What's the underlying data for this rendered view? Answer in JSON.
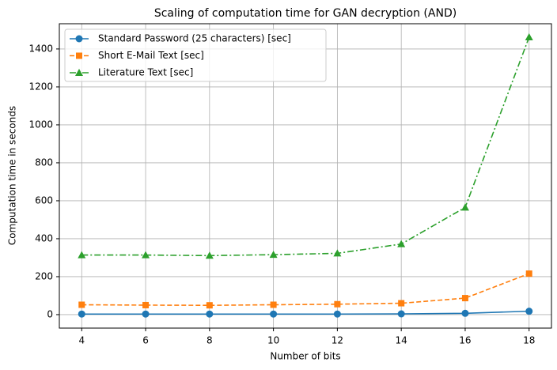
{
  "chart_data": {
    "type": "line",
    "title": "Scaling of computation time for GAN decryption (AND)",
    "x_label": "Number of bits",
    "y_label": "Computation time in seconds",
    "x": [
      4,
      6,
      8,
      10,
      12,
      14,
      16,
      18
    ],
    "series": [
      {
        "name": "Standard Password (25 characters) [sec]",
        "color": "#1f77b4",
        "marker": "circle",
        "linestyle": "solid",
        "values": [
          3,
          3,
          3,
          3,
          3,
          4,
          7,
          18
        ]
      },
      {
        "name": "Short E-Mail Text [sec]",
        "color": "#ff7f0e",
        "marker": "square",
        "linestyle": "dashed",
        "values": [
          52,
          50,
          49,
          52,
          55,
          60,
          87,
          216
        ]
      },
      {
        "name": "Literature Text [sec]",
        "color": "#2ca02c",
        "marker": "triangle",
        "linestyle": "dashdot",
        "values": [
          314,
          314,
          311,
          316,
          323,
          372,
          565,
          1462
        ]
      }
    ],
    "xlim": [
      3.3,
      18.7
    ],
    "ylim": [
      -71,
      1533
    ],
    "xticks": [
      4,
      6,
      8,
      10,
      12,
      14,
      16,
      18
    ],
    "yticks": [
      0,
      200,
      400,
      600,
      800,
      1000,
      1200,
      1400
    ],
    "grid": true,
    "legend": "upper left"
  }
}
